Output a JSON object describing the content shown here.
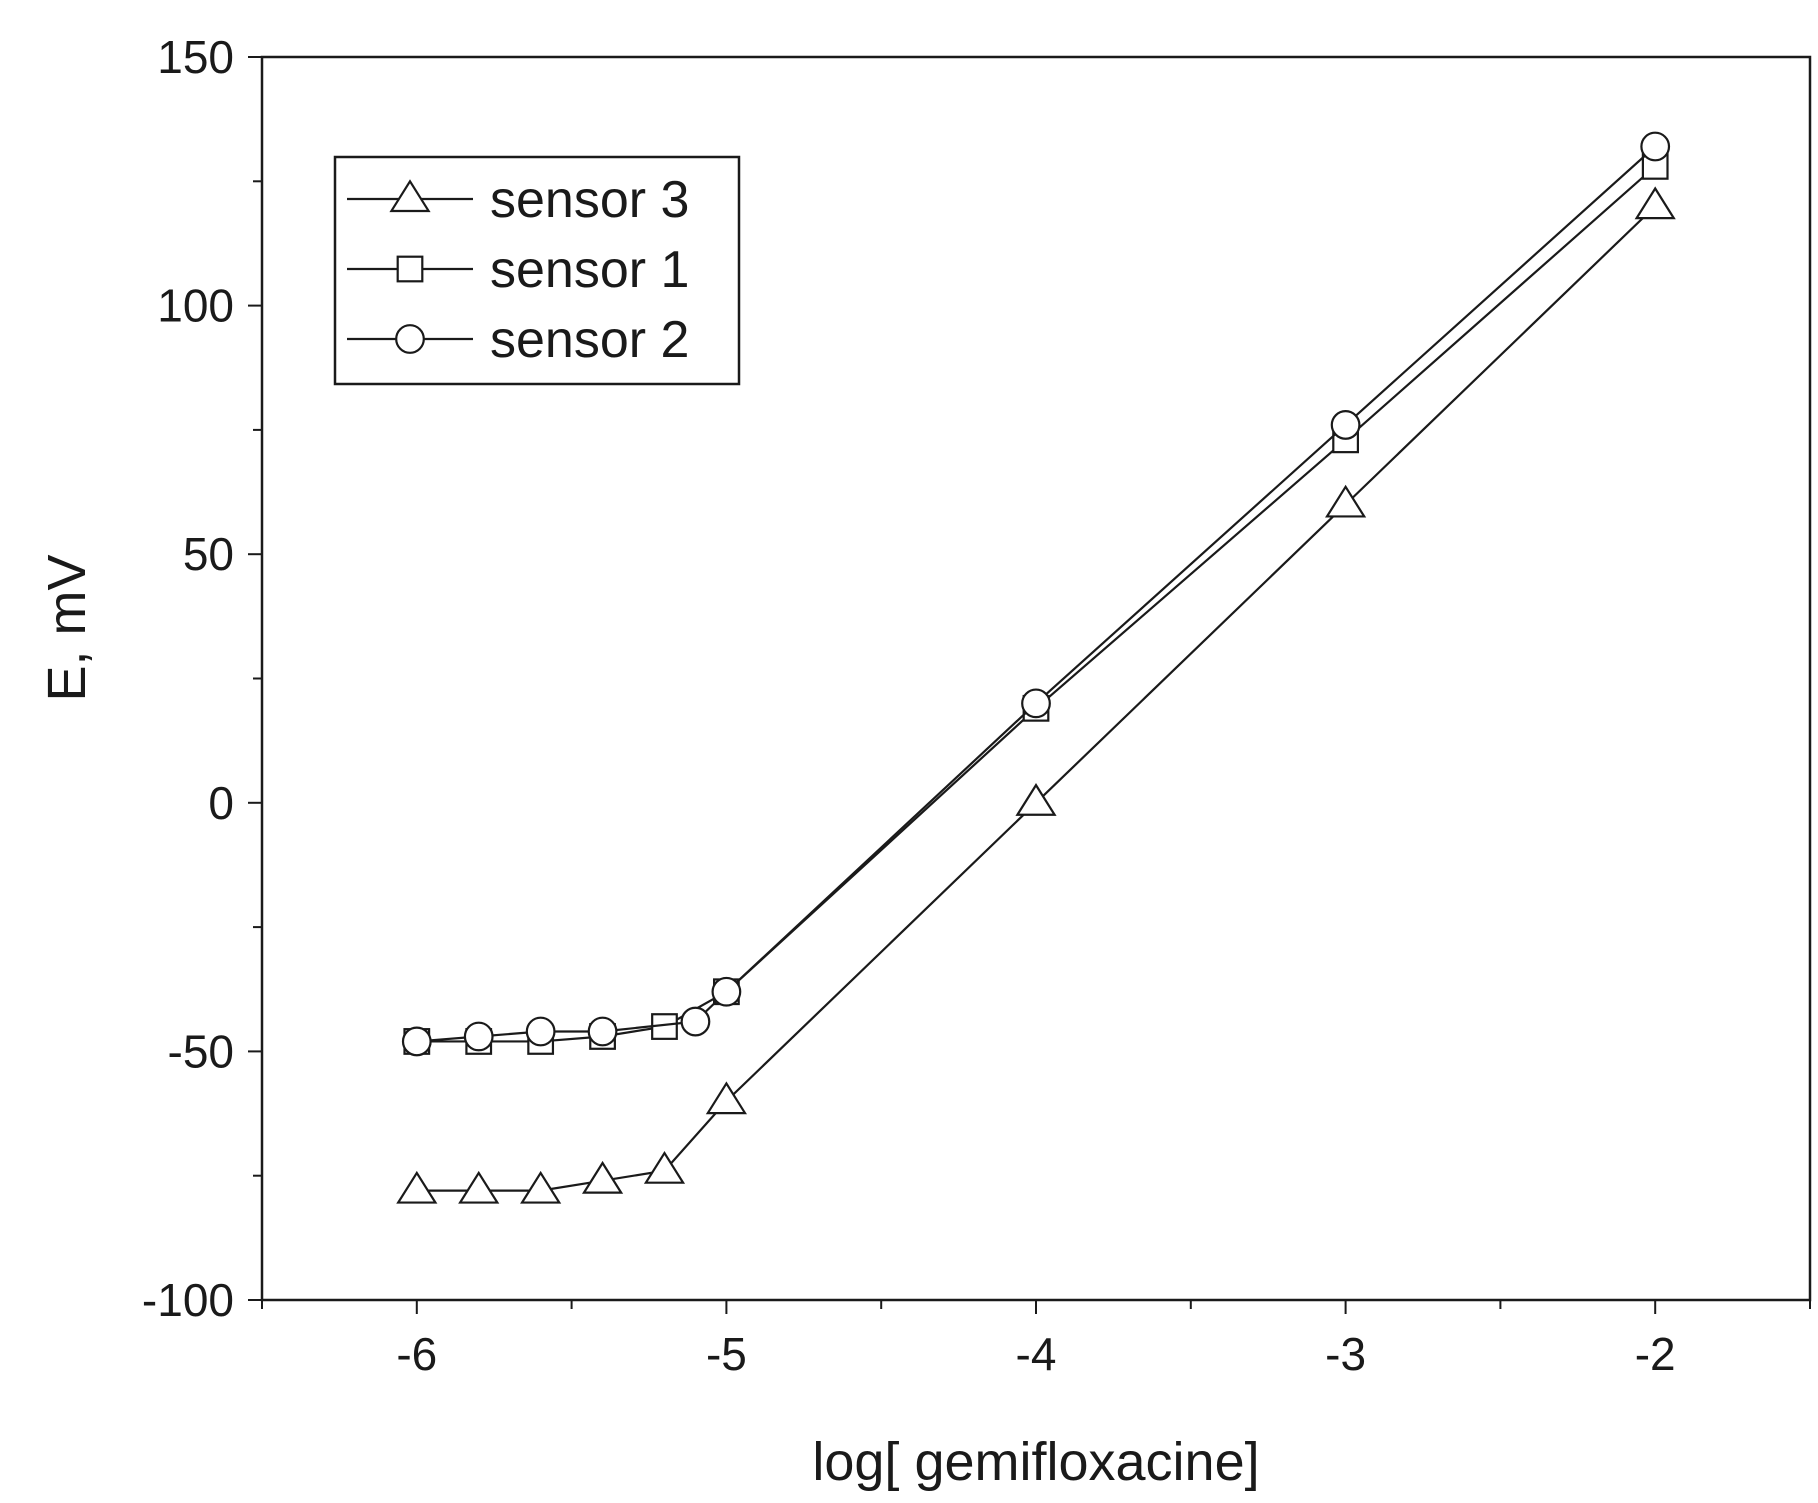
{
  "chart_data": {
    "type": "line",
    "xlabel": "log[ gemifloxacine]",
    "ylabel": "E, mV",
    "xlim": [
      -6.5,
      -1.5
    ],
    "ylim": [
      -100,
      150
    ],
    "x_ticks": [
      -6,
      -5,
      -4,
      -3,
      -2
    ],
    "x_tick_labels": [
      "-6",
      "-5",
      "-4",
      "-3",
      "-2"
    ],
    "y_ticks": [
      -100,
      -50,
      0,
      50,
      100,
      150
    ],
    "y_tick_labels": [
      "-100",
      "-50",
      "0",
      "50",
      "100",
      "150"
    ],
    "grid": false,
    "legend_position": "top-left",
    "series": [
      {
        "name": "sensor 3",
        "marker": "triangle",
        "x": [
          -6,
          -5.8,
          -5.6,
          -5.4,
          -5.2,
          -5,
          -4,
          -3,
          -2
        ],
        "y": [
          -78,
          -78,
          -78,
          -76,
          -74,
          -60,
          0,
          60,
          120
        ]
      },
      {
        "name": "sensor 1",
        "marker": "square",
        "x": [
          -6,
          -5.8,
          -5.6,
          -5.4,
          -5.2,
          -5,
          -4,
          -3,
          -2
        ],
        "y": [
          -48,
          -48,
          -48,
          -47,
          -45,
          -38,
          19,
          73,
          128
        ]
      },
      {
        "name": "sensor 2",
        "marker": "circle",
        "x": [
          -6,
          -5.8,
          -5.6,
          -5.4,
          -5.1,
          -5,
          -4,
          -3,
          -2
        ],
        "y": [
          -48,
          -47,
          -46,
          -46,
          -44,
          -38,
          20,
          76,
          132
        ]
      }
    ]
  }
}
